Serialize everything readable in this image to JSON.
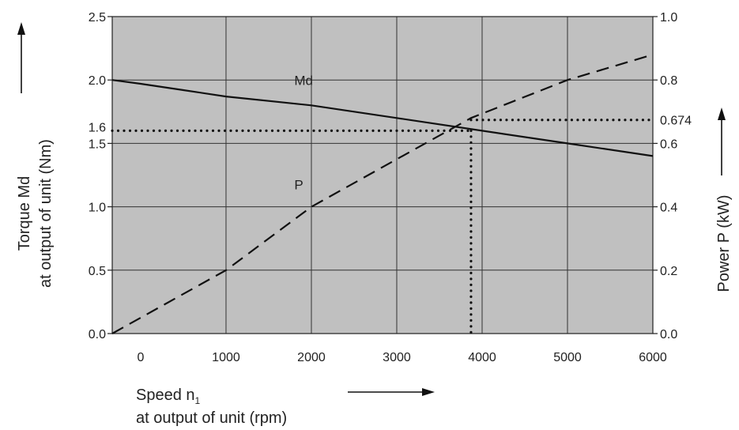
{
  "chart_data": {
    "type": "line",
    "x": {
      "label_line1": "Speed n",
      "label_subscript": "1",
      "label_line2": "at output of unit (rpm)",
      "ticks": [
        0,
        1000,
        2000,
        3000,
        4000,
        5000,
        6000
      ],
      "range": [
        -333,
        6000
      ]
    },
    "y_left": {
      "label_line1": "Torque Md",
      "label_line2": "at output of unit (Nm)",
      "ticks": [
        "0.0",
        "0.5",
        "1.0",
        "1.5",
        "2.0",
        "2.5"
      ],
      "extra_tick": "1.6",
      "range": [
        0,
        2.5
      ]
    },
    "y_right": {
      "label": "Power P (kW)",
      "ticks": [
        "0.0",
        "0.2",
        "0.4",
        "0.6",
        "0.8",
        "1.0"
      ],
      "extra_tick": "0.674",
      "range": [
        0,
        1.0
      ]
    },
    "series": [
      {
        "name": "Md",
        "axis": "left",
        "style": "solid",
        "x": [
          -333,
          0,
          500,
          1000,
          2000,
          3000,
          4000,
          5000,
          6000
        ],
        "y": [
          2.0,
          1.97,
          1.92,
          1.87,
          1.8,
          1.7,
          1.6,
          1.5,
          1.4
        ]
      },
      {
        "name": "P",
        "axis": "right",
        "style": "dashed",
        "x": [
          -333,
          1000,
          2000,
          3000,
          3870,
          5000,
          6000
        ],
        "y": [
          0.0,
          0.2,
          0.4,
          0.55,
          0.68,
          0.8,
          0.88
        ]
      }
    ],
    "reference": {
      "style": "dotted",
      "speed": 3870,
      "torque": 1.6,
      "power": 0.674
    },
    "grid": true,
    "background": "#c0c0c0"
  }
}
